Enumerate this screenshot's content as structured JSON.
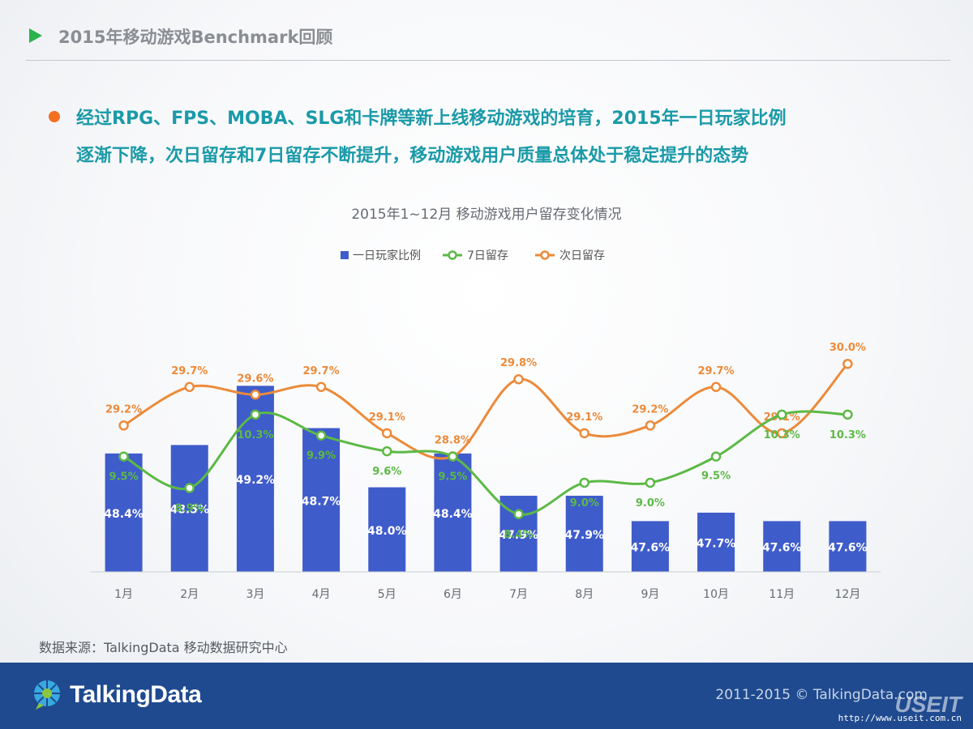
{
  "header": {
    "title": "2015年移动游戏Benchmark回顾"
  },
  "headline": {
    "line1": "经过RPG、FPS、MOBA、SLG和卡牌等新上线移动游戏的培育，2015年一日玩家比例",
    "line2": "逐渐下降，次日留存和7日留存不断提升，移动游戏用户质量总体处于稳定提升的态势"
  },
  "chart_data": {
    "type": "bar",
    "title": "2015年1~12月 移动游戏用户留存变化情况",
    "categories": [
      "1月",
      "2月",
      "3月",
      "4月",
      "5月",
      "6月",
      "7月",
      "8月",
      "9月",
      "10月",
      "11月",
      "12月"
    ],
    "legend": [
      "一日玩家比例",
      "7日留存",
      "次日留存"
    ],
    "colors": {
      "bar": "#3f5ccb",
      "line7": "#5cb946",
      "lineNext": "#ec8a3a"
    },
    "series": [
      {
        "name": "一日玩家比例",
        "kind": "bar",
        "ylim": [
          47.0,
          49.5
        ],
        "values": [
          48.4,
          48.5,
          49.2,
          48.7,
          48.0,
          48.4,
          47.9,
          47.9,
          47.6,
          47.7,
          47.6,
          47.6
        ],
        "labels": [
          "48.4%",
          "48.5%",
          "49.2%",
          "48.7%",
          "48.0%",
          "48.4%",
          "47.9%",
          "47.9%",
          "47.6%",
          "47.7%",
          "47.6%",
          "47.6%"
        ]
      },
      {
        "name": "7日留存",
        "kind": "line",
        "ylim": [
          7.3,
          14.5
        ],
        "values": [
          9.5,
          8.9,
          10.3,
          9.9,
          9.6,
          9.5,
          8.4,
          9.0,
          9.0,
          9.5,
          10.3,
          10.3
        ],
        "labels": [
          "9.5%",
          "8.9%",
          "10.3%",
          "9.9%",
          "9.6%",
          "9.5%",
          "8.4%",
          "9.0%",
          "9.0%",
          "9.5%",
          "10.3%",
          "10.3%"
        ],
        "label_pos": [
          "below",
          "below",
          "below",
          "below",
          "below",
          "below",
          "below",
          "below",
          "below",
          "above",
          "below",
          "below"
        ]
      },
      {
        "name": "次日留存",
        "kind": "line",
        "ylim": [
          27.3,
          32.2
        ],
        "values": [
          29.2,
          29.7,
          29.6,
          29.7,
          29.1,
          28.8,
          29.8,
          29.1,
          29.2,
          29.7,
          29.1,
          30.0
        ],
        "labels": [
          "29.2%",
          "29.7%",
          "29.6%",
          "29.7%",
          "29.1%",
          "28.8%",
          "29.8%",
          "29.1%",
          "29.2%",
          "29.7%",
          "29.1%",
          "30.0%"
        ]
      }
    ]
  },
  "source": "数据来源：TalkingData 移动数据研究中心",
  "footer": {
    "logo_text": "TalkingData",
    "copyright": "2011-2015 © TalkingData.com",
    "watermark": "USEIT",
    "watermark_url": "http://www.useit.com.cn"
  }
}
